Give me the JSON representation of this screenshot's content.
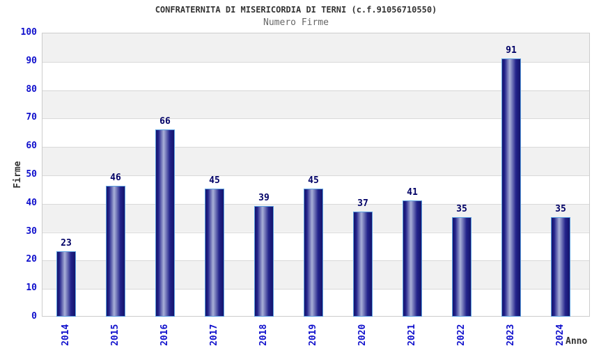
{
  "chart_data": {
    "type": "bar",
    "title": "CONFRATERNITA DI MISERICORDIA DI TERNI (c.f.91056710550)",
    "subtitle": "Numero Firme",
    "xlabel": "Anno",
    "ylabel": "Firme",
    "categories": [
      "2014",
      "2015",
      "2016",
      "2017",
      "2018",
      "2019",
      "2020",
      "2021",
      "2022",
      "2023",
      "2024"
    ],
    "values": [
      23,
      46,
      66,
      45,
      39,
      45,
      37,
      41,
      35,
      91,
      35
    ],
    "ylim": [
      0,
      100
    ],
    "ytick_step": 10,
    "grid": "horizontal",
    "legend": "none",
    "band_pattern": "alternating gray/white per 10 units, gray at top (90-100)",
    "colors": {
      "title": "#333333",
      "subtitle": "#666666",
      "axis_label": "#333333",
      "tick_label": "#0f0fcc",
      "value_label": "#000066",
      "bar_outline": "#5b9fe0",
      "bar_edge_dark": "#14146b",
      "bar_dark": "#23238b",
      "bar_mid_light": "#a9b0d8",
      "band_gray": "#f1f1f1",
      "band_white": "#ffffff",
      "gridline": "#d9d9d9",
      "plot_border": "#cccccc",
      "background": "#ffffff"
    }
  }
}
